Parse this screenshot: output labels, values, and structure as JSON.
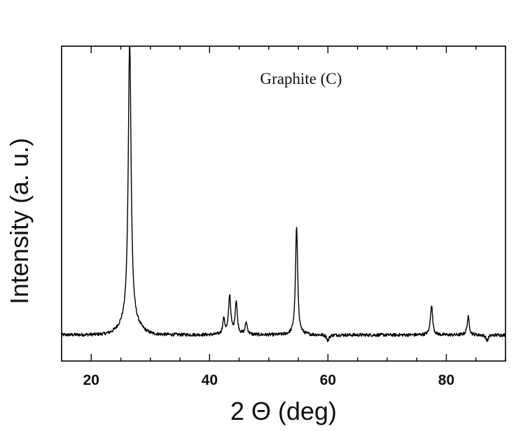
{
  "chart_data": {
    "type": "line",
    "title": "",
    "xlabel": "2 Θ (deg)",
    "ylabel": "Intensity (a. u.)",
    "annotation": "Graphite (C)",
    "xlim": [
      15,
      90
    ],
    "ylim": [
      0,
      100
    ],
    "x_ticks": [
      20,
      40,
      60,
      80
    ],
    "y_ticks_labeled": false,
    "grid": false,
    "legend": "none",
    "line_color": "#000000",
    "baseline": 4,
    "peaks": [
      {
        "x": 26.5,
        "y": 100
      },
      {
        "x": 42.4,
        "y": 9
      },
      {
        "x": 43.4,
        "y": 17
      },
      {
        "x": 44.5,
        "y": 15
      },
      {
        "x": 46.2,
        "y": 8
      },
      {
        "x": 54.7,
        "y": 40
      },
      {
        "x": 60.0,
        "y": 2
      },
      {
        "x": 77.5,
        "y": 14
      },
      {
        "x": 83.7,
        "y": 10
      },
      {
        "x": 86.9,
        "y": 2
      }
    ]
  }
}
